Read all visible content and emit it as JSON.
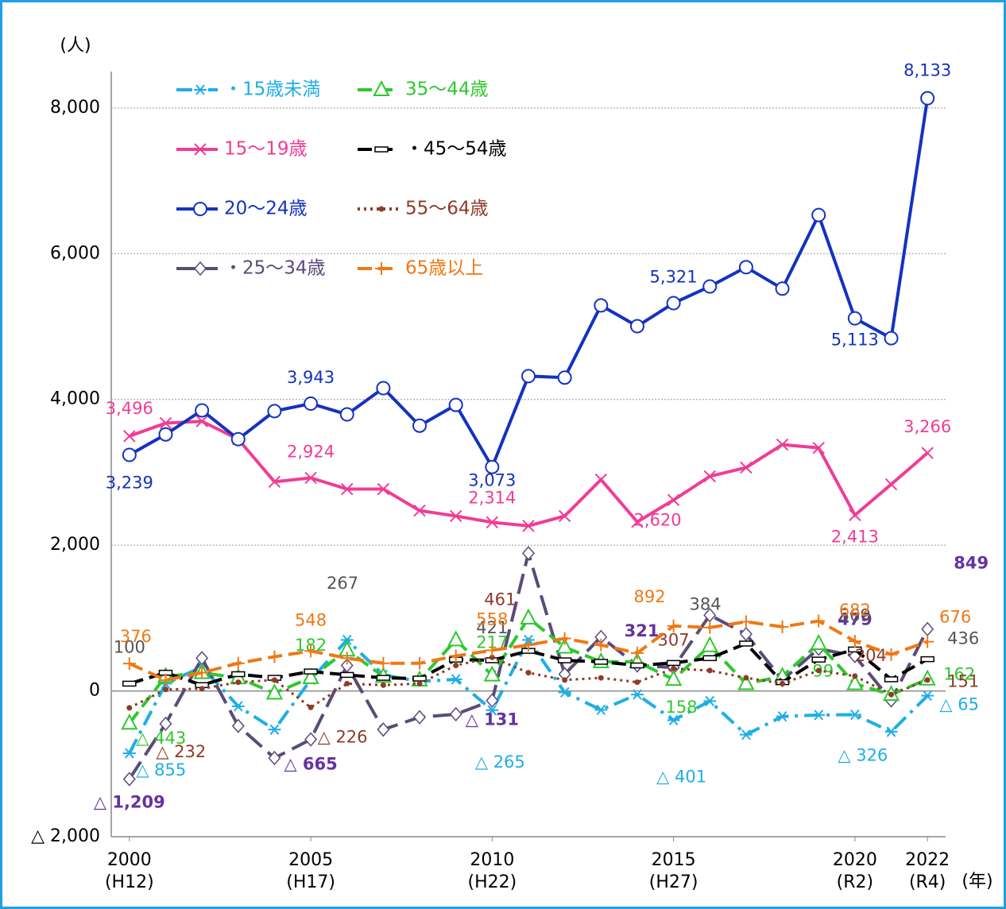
{
  "chart_data": {
    "type": "line",
    "y_unit": "(人)",
    "x_unit": "(年)",
    "x": [
      2000,
      2001,
      2002,
      2003,
      2004,
      2005,
      2006,
      2007,
      2008,
      2009,
      2010,
      2011,
      2012,
      2013,
      2014,
      2015,
      2016,
      2017,
      2018,
      2019,
      2020,
      2021,
      2022
    ],
    "xlim": [
      1999.5,
      2022.5
    ],
    "xticks": [
      2000,
      2005,
      2010,
      2015,
      2020,
      2022
    ],
    "xtick_era_labels": [
      "(H12)",
      "(H17)",
      "(H22)",
      "(H27)",
      "(R2)",
      "(R4)"
    ],
    "ylim": [
      -2000,
      8500
    ],
    "yticks": [
      {
        "value": 8000,
        "label": "8,000"
      },
      {
        "value": 6000,
        "label": "6,000"
      },
      {
        "value": 4000,
        "label": "4,000"
      },
      {
        "value": 2000,
        "label": "2,000"
      },
      0,
      {
        "value": -2000,
        "label": "△ 2,000"
      }
    ],
    "grid": true,
    "series": [
      {
        "name": "・15歳未満",
        "color": "#1eaee6",
        "marker": "asterisk",
        "dash": "dashdot",
        "values": [
          -855,
          100,
          330,
          -210,
          -530,
          155,
          700,
          220,
          130,
          160,
          -265,
          700,
          -20,
          -260,
          -50,
          -401,
          -140,
          -600,
          -350,
          -330,
          -326,
          -560,
          -65
        ],
        "value_labels": [
          "△ 855",
          null,
          null,
          null,
          null,
          null,
          null,
          null,
          null,
          null,
          "△ 265",
          null,
          null,
          null,
          null,
          "△ 401",
          null,
          null,
          null,
          null,
          "△ 326",
          null,
          "△ 65"
        ]
      },
      {
        "name": "15～19歳",
        "color": "#f03c96",
        "marker": "x",
        "dash": "solid",
        "values": [
          3496,
          3675,
          3700,
          3455,
          2870,
          2924,
          2770,
          2770,
          2475,
          2400,
          2314,
          2265,
          2400,
          2900,
          2320,
          2620,
          2945,
          3065,
          3380,
          3335,
          2413,
          2835,
          3266
        ],
        "value_labels": [
          "3,496",
          null,
          null,
          null,
          null,
          "2,924",
          null,
          null,
          null,
          null,
          "2,314",
          null,
          null,
          null,
          null,
          "2,620",
          null,
          null,
          null,
          null,
          "2,413",
          null,
          "3,266"
        ]
      },
      {
        "name": "20～24歳",
        "color": "#1432c0",
        "marker": "circle",
        "dash": "solid",
        "values": [
          3239,
          3520,
          3850,
          3455,
          3840,
          3943,
          3795,
          4155,
          3640,
          3925,
          3073,
          4320,
          4300,
          5290,
          5005,
          5321,
          5550,
          5815,
          5520,
          6530,
          5113,
          4840,
          8133
        ],
        "value_labels": [
          "3,239",
          null,
          null,
          null,
          null,
          "3,943",
          null,
          null,
          null,
          null,
          "3,073",
          null,
          null,
          null,
          null,
          "5,321",
          null,
          null,
          null,
          null,
          "5,113",
          null,
          "8,133"
        ]
      },
      {
        "name": "・25～34歳",
        "color": "#5a4b78",
        "marker": "diamond",
        "dash": "longdash",
        "values": [
          -1209,
          -450,
          450,
          -480,
          -920,
          -665,
          350,
          -530,
          -360,
          -320,
          -131,
          1890,
          230,
          740,
          350,
          321,
          1040,
          780,
          150,
          580,
          479,
          -130,
          849
        ],
        "value_labels": [
          "△ 1,209",
          null,
          null,
          null,
          null,
          "△ 665",
          null,
          null,
          null,
          null,
          "△ 131",
          null,
          null,
          null,
          null,
          "321",
          null,
          null,
          null,
          null,
          "479",
          null,
          "849"
        ]
      },
      {
        "name": "35～44歳",
        "color": "#2dc82d",
        "marker": "triangle",
        "dash": "dash",
        "values": [
          -443,
          200,
          250,
          180,
          -30,
          182,
          560,
          200,
          150,
          700,
          217,
          1000,
          600,
          400,
          400,
          158,
          620,
          100,
          200,
          650,
          99,
          -50,
          162
        ],
        "value_labels": [
          "△ 443",
          null,
          null,
          null,
          null,
          "182",
          null,
          null,
          null,
          null,
          "217",
          null,
          null,
          null,
          null,
          "158",
          null,
          null,
          null,
          null,
          "99",
          null,
          "162"
        ]
      },
      {
        "name": "・45～54歳",
        "color": "#000000",
        "marker": "box",
        "dash": "dash",
        "values": [
          100,
          250,
          80,
          230,
          180,
          267,
          220,
          180,
          170,
          430,
          421,
          550,
          420,
          400,
          350,
          384,
          450,
          650,
          120,
          430,
          569,
          160,
          436
        ],
        "value_labels": [
          "100",
          null,
          null,
          null,
          null,
          "267",
          null,
          null,
          null,
          null,
          "421",
          null,
          null,
          null,
          null,
          "384",
          null,
          null,
          null,
          null,
          "569",
          null,
          "436"
        ]
      },
      {
        "name": "55～64歳",
        "color": "#8c3c28",
        "marker": "dot",
        "dash": "dot",
        "values": [
          -232,
          20,
          30,
          120,
          150,
          -226,
          100,
          80,
          100,
          350,
          461,
          250,
          150,
          180,
          120,
          307,
          280,
          180,
          100,
          280,
          204,
          -50,
          151
        ],
        "value_labels": [
          "△ 232",
          null,
          null,
          null,
          null,
          "△ 226",
          null,
          null,
          null,
          null,
          "461",
          null,
          null,
          null,
          null,
          "307",
          null,
          null,
          null,
          null,
          "204",
          null,
          "151"
        ]
      },
      {
        "name": "65歳以上",
        "color": "#f07814",
        "marker": "plus",
        "dash": "dash",
        "values": [
          376,
          150,
          250,
          380,
          470,
          548,
          450,
          380,
          380,
          480,
          558,
          630,
          720,
          630,
          520,
          892,
          870,
          950,
          880,
          960,
          682,
          500,
          676
        ],
        "value_labels": [
          "376",
          null,
          null,
          null,
          null,
          "548",
          null,
          null,
          null,
          null,
          "558",
          null,
          null,
          null,
          null,
          "892",
          null,
          null,
          null,
          null,
          "682",
          null,
          "676"
        ]
      }
    ]
  }
}
